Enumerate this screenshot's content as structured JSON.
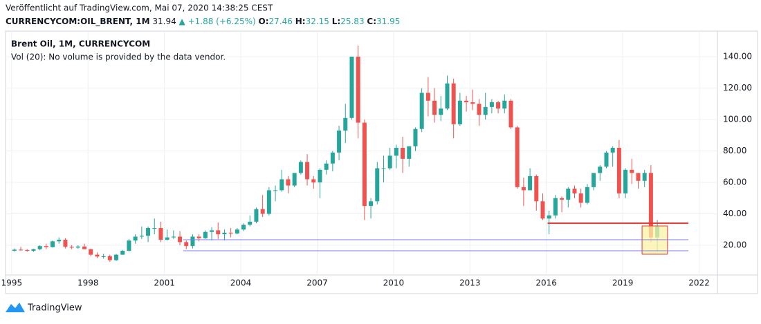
{
  "header": {
    "published": "Veröffentlicht auf TradingView.com, Mai 07, 2020 14:38:25 CEST",
    "symbol": "CURRENCYCOM:OIL_BRENT, 1M",
    "last": "31.94",
    "change": "▲ +1.88 (+6.25%)",
    "o_label": "O:",
    "o": "27.46",
    "h_label": "H:",
    "h": "32.15",
    "l_label": "L:",
    "l": "25.83",
    "c_label": "C:",
    "c": "31.95"
  },
  "footer": {
    "brand": "TradingView"
  },
  "chart_data": {
    "type": "candlestick",
    "title": "Brent Oil, 1M, CURRENCYCOM",
    "subtitle": "Vol (20): No volume is provided by the data vendor.",
    "up_color": "#26a69a",
    "down_color": "#ef5350",
    "grid": true,
    "xlim": [
      1994.76,
      2022.72
    ],
    "xticks": [
      1995,
      1998,
      2001,
      2004,
      2007,
      2010,
      2013,
      2016,
      2019,
      2022
    ],
    "ylim": [
      1.1,
      156.3
    ],
    "yticks": [
      {
        "value": 20,
        "label": "20.00"
      },
      {
        "value": 40,
        "label": "40.00"
      },
      {
        "value": 60,
        "label": "60.00"
      },
      {
        "value": 80,
        "label": "80.00"
      },
      {
        "value": 100,
        "label": "100.00"
      },
      {
        "value": 120,
        "label": "120.00"
      },
      {
        "value": 140,
        "label": "140.00"
      }
    ],
    "x": [
      1995,
      1995.25,
      1995.5,
      1995.75,
      1996,
      1996.25,
      1996.5,
      1996.75,
      1997,
      1997.25,
      1997.5,
      1997.75,
      1998,
      1998.25,
      1998.5,
      1998.75,
      1999,
      1999.25,
      1999.5,
      1999.75,
      2000,
      2000.25,
      2000.5,
      2000.75,
      2001,
      2001.25,
      2001.5,
      2001.75,
      2002,
      2002.25,
      2002.5,
      2002.75,
      2003,
      2003.25,
      2003.5,
      2003.75,
      2004,
      2004.25,
      2004.5,
      2004.75,
      2005,
      2005.25,
      2005.5,
      2005.75,
      2006,
      2006.25,
      2006.5,
      2006.75,
      2007,
      2007.25,
      2007.5,
      2007.75,
      2008,
      2008.25,
      2008.5,
      2008.75,
      2009,
      2009.25,
      2009.5,
      2009.75,
      2010,
      2010.25,
      2010.5,
      2010.75,
      2011,
      2011.25,
      2011.5,
      2011.75,
      2012,
      2012.25,
      2012.5,
      2012.75,
      2013,
      2013.25,
      2013.5,
      2013.75,
      2014,
      2014.25,
      2014.5,
      2014.75,
      2015,
      2015.25,
      2015.5,
      2015.75,
      2016,
      2016.25,
      2016.5,
      2016.75,
      2017,
      2017.25,
      2017.5,
      2017.75,
      2018,
      2018.25,
      2018.5,
      2018.75,
      2019,
      2019.25,
      2019.5,
      2019.75,
      2020,
      2020.25
    ],
    "ohlc": [
      [
        16.5,
        18,
        16,
        17.2
      ],
      [
        17.2,
        19,
        16.5,
        17
      ],
      [
        17,
        17.5,
        15.8,
        16.5
      ],
      [
        16.5,
        17.8,
        15.8,
        17.5
      ],
      [
        17.5,
        20,
        16.8,
        19.5
      ],
      [
        19.5,
        21,
        17.5,
        18.8
      ],
      [
        18.8,
        23,
        18.5,
        22.5
      ],
      [
        22.5,
        25,
        21,
        23.5
      ],
      [
        23.5,
        24.5,
        18,
        19
      ],
      [
        19,
        20,
        17.5,
        18.5
      ],
      [
        18.5,
        20,
        17.8,
        19.2
      ],
      [
        19.2,
        21,
        17.5,
        17.5
      ],
      [
        17.5,
        17.8,
        13,
        14
      ],
      [
        14,
        15.5,
        11.8,
        12.8
      ],
      [
        12.8,
        14.5,
        11.5,
        13
      ],
      [
        13,
        14,
        9.5,
        10.5
      ],
      [
        10.5,
        14.5,
        10,
        14
      ],
      [
        14,
        17,
        14,
        16.5
      ],
      [
        16.5,
        24,
        16,
        23
      ],
      [
        23,
        27,
        21,
        25.5
      ],
      [
        25.5,
        32,
        24,
        26
      ],
      [
        26,
        32,
        22,
        31
      ],
      [
        31,
        37,
        27,
        31
      ],
      [
        31,
        35,
        22,
        23.5
      ],
      [
        23.5,
        30,
        23,
        25
      ],
      [
        25,
        29.5,
        24,
        25.5
      ],
      [
        25.5,
        29,
        20,
        22
      ],
      [
        22,
        23,
        17.5,
        19.5
      ],
      [
        19.5,
        27,
        18,
        25.5
      ],
      [
        25.5,
        27,
        22.5,
        24.5
      ],
      [
        24.5,
        29.5,
        24,
        28.5
      ],
      [
        28.5,
        31.5,
        23,
        29.5
      ],
      [
        29.5,
        34.5,
        24,
        27
      ],
      [
        27,
        30,
        23,
        28
      ],
      [
        28,
        31,
        25,
        27.5
      ],
      [
        27.5,
        31,
        27,
        30
      ],
      [
        30,
        34,
        29,
        33
      ],
      [
        33,
        39,
        32,
        35
      ],
      [
        35,
        44,
        34,
        43
      ],
      [
        43,
        52,
        38,
        40
      ],
      [
        40,
        57,
        39,
        55
      ],
      [
        55,
        58,
        48,
        55
      ],
      [
        55,
        68,
        54,
        62
      ],
      [
        62,
        64,
        53,
        58
      ],
      [
        58,
        66,
        57,
        66
      ],
      [
        66,
        74,
        65,
        73
      ],
      [
        73,
        78,
        58,
        62
      ],
      [
        62,
        64,
        56,
        60
      ],
      [
        60,
        69,
        50,
        68
      ],
      [
        68,
        74,
        65,
        72
      ],
      [
        72,
        80,
        67,
        79
      ],
      [
        79,
        96,
        74,
        93
      ],
      [
        93,
        110,
        85,
        101
      ],
      [
        101,
        140,
        100,
        140
      ],
      [
        140,
        147,
        88,
        98
      ],
      [
        98,
        100,
        36,
        45
      ],
      [
        45,
        50,
        37,
        48
      ],
      [
        48,
        73,
        46,
        69
      ],
      [
        69,
        77,
        60,
        69
      ],
      [
        69,
        82,
        68,
        77
      ],
      [
        77,
        84,
        69,
        82
      ],
      [
        82,
        89,
        66,
        75
      ],
      [
        75,
        83,
        70,
        83
      ],
      [
        83,
        95,
        80,
        94
      ],
      [
        94,
        120,
        92,
        117
      ],
      [
        117,
        127,
        102,
        112
      ],
      [
        112,
        120,
        98,
        103
      ],
      [
        103,
        115,
        99,
        107
      ],
      [
        107,
        128,
        106,
        123
      ],
      [
        123,
        126,
        88,
        97
      ],
      [
        97,
        117,
        96,
        112
      ],
      [
        112,
        115,
        105,
        111
      ],
      [
        111,
        119,
        106,
        110
      ],
      [
        110,
        113,
        96,
        103
      ],
      [
        103,
        117,
        100,
        108
      ],
      [
        108,
        113,
        104,
        111
      ],
      [
        111,
        112,
        104,
        107
      ],
      [
        107,
        116,
        104,
        112
      ],
      [
        112,
        113,
        94,
        95
      ],
      [
        95,
        96,
        56,
        57
      ],
      [
        57,
        63,
        45,
        55
      ],
      [
        55,
        69,
        55,
        64
      ],
      [
        64,
        65,
        42,
        48
      ],
      [
        48,
        53,
        36,
        37
      ],
      [
        37,
        42,
        27,
        39
      ],
      [
        39,
        52,
        37,
        50
      ],
      [
        50,
        51,
        41,
        49
      ],
      [
        49,
        57,
        44,
        56
      ],
      [
        56,
        58,
        50,
        53
      ],
      [
        53,
        56,
        44,
        47
      ],
      [
        47,
        59,
        46,
        57
      ],
      [
        57,
        66,
        55,
        66
      ],
      [
        66,
        71,
        61,
        70
      ],
      [
        70,
        80,
        69,
        79
      ],
      [
        79,
        83,
        70,
        82
      ],
      [
        82,
        87,
        50,
        53
      ],
      [
        53,
        69,
        50,
        68
      ],
      [
        68,
        75,
        59,
        66
      ],
      [
        66,
        66,
        56,
        61
      ],
      [
        61,
        68,
        57,
        66
      ],
      [
        66,
        71,
        22,
        25
      ],
      [
        25,
        36,
        16,
        32
      ]
    ],
    "hlines": [
      {
        "color": "#e53935",
        "y": 34,
        "x": [
          2016.05,
          2021.58
        ]
      },
      {
        "color": "#7b7bf0",
        "y": 23.5,
        "x": [
          2001.74,
          2021.58
        ]
      },
      {
        "color": "#7b7bf0",
        "y": 16.5,
        "x": [
          2001.74,
          2021.58
        ]
      }
    ],
    "rect": {
      "fill": "#fbf3a6",
      "stroke": "#e53935",
      "x": [
        2019.76,
        2020.76
      ],
      "y": [
        14.3,
        32.3
      ]
    }
  }
}
